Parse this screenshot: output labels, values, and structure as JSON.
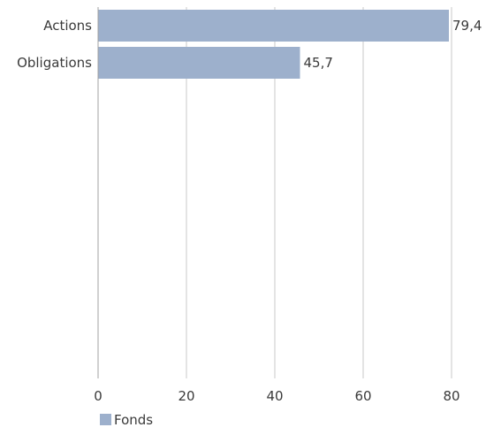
{
  "chart_data": {
    "type": "bar",
    "orientation": "horizontal",
    "categories": [
      "Actions",
      "Obligations"
    ],
    "series": [
      {
        "name": "Fonds",
        "values": [
          79.4,
          45.7
        ],
        "labels": [
          "79,4",
          "45,7"
        ]
      }
    ],
    "xlim": [
      0,
      80
    ],
    "xticks": [
      0,
      20,
      40,
      60,
      80
    ],
    "xtick_labels": [
      "0",
      "20",
      "40",
      "60",
      "80"
    ],
    "grid": true,
    "legend_position": "bottom-left",
    "colors": {
      "bar": "#9db0cc",
      "grid": "#c8c8c8",
      "text": "#3a3a3a"
    }
  }
}
